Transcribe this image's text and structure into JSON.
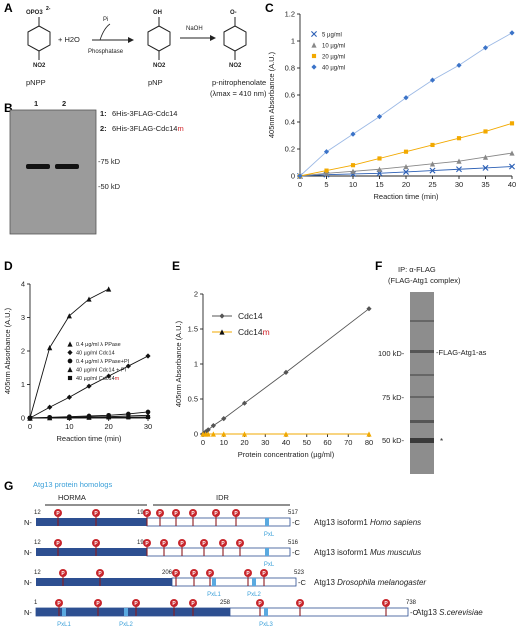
{
  "panels": {
    "A": "A",
    "B": "B",
    "C": "C",
    "D": "D",
    "E": "E",
    "F": "F",
    "G": "G"
  },
  "panel_a": {
    "pnpp_group": "OPO3",
    "pnpp_charge": "2-",
    "plus_water": "+ H2O",
    "pi_label": "Pi",
    "enzyme": "Phosphatase",
    "naoh": "NaOH",
    "oh": "OH",
    "ominus": "O-",
    "nitro": "NO2",
    "pnpp": "pNPP",
    "pnp": "pNP",
    "product": "p-nitrophenolate",
    "lambda": "(λmax = 410 nm)"
  },
  "panel_b": {
    "lane1": "1",
    "lane2": "2",
    "marker75": "-75 kD",
    "marker50": "-50 kD",
    "legend1_num": "1:",
    "legend1": "6His-3FLAG-Cdc14",
    "legend2_num": "2:",
    "legend2": "6His-3FLAG-Cdc14",
    "legend2_suffix": "m"
  },
  "panel_f": {
    "title1": "IP: α-FLAG",
    "title2": "(FLAG-Atg1 complex)",
    "m100": "100 kD-",
    "m75": "75 kD-",
    "m50": "50 kD-",
    "band": "-FLAG-Atg1-as",
    "star": "*"
  },
  "chart_data": [
    {
      "id": "C",
      "type": "line",
      "xlabel": "Reaction time (min)",
      "ylabel": "405nm Absorbance (A.U.)",
      "xlim": [
        0,
        40
      ],
      "ylim": [
        0,
        1.2
      ],
      "x_ticks": [
        "0",
        "5",
        "10",
        "15",
        "20",
        "25",
        "30",
        "35",
        "40"
      ],
      "y_ticks": [
        "0",
        "0.2",
        "0.4",
        "0.6",
        "0.8",
        "1",
        "1.2"
      ],
      "x": [
        0,
        5,
        10,
        15,
        20,
        25,
        30,
        35,
        40
      ],
      "series": [
        {
          "name": "5 µg/ml",
          "color": "#2b5fb5",
          "marker": "x",
          "values": [
            0,
            0.01,
            0.015,
            0.02,
            0.03,
            0.04,
            0.05,
            0.06,
            0.07
          ]
        },
        {
          "name": "10 µg/ml",
          "color": "#888888",
          "marker": "triangle",
          "values": [
            0,
            0.02,
            0.035,
            0.05,
            0.07,
            0.09,
            0.11,
            0.14,
            0.17
          ]
        },
        {
          "name": "20 µg/ml",
          "color": "#f2a900",
          "marker": "square",
          "values": [
            0,
            0.04,
            0.08,
            0.13,
            0.18,
            0.23,
            0.28,
            0.33,
            0.39
          ]
        },
        {
          "name": "40 µg/ml",
          "color": "#3b73c8",
          "marker": "diamond",
          "values": [
            0,
            0.18,
            0.31,
            0.44,
            0.58,
            0.71,
            0.82,
            0.95,
            1.06
          ]
        }
      ]
    },
    {
      "id": "D",
      "type": "line",
      "xlabel": "Reaction time (min)",
      "ylabel": "405nm Absorbance (A.U.)",
      "xlim": [
        0,
        30
      ],
      "ylim": [
        0,
        4
      ],
      "x_ticks": [
        "0",
        "10",
        "20",
        "30"
      ],
      "y_ticks": [
        "0",
        "1",
        "2",
        "3",
        "4"
      ],
      "x": [
        0,
        5,
        10,
        15,
        20,
        25,
        30
      ],
      "series": [
        {
          "name": "0.4 µg/ml λ PPase",
          "values": [
            0,
            2.1,
            3.05,
            3.55,
            3.85,
            null,
            null
          ]
        },
        {
          "name": "40 µg/ml Cdc14",
          "values": [
            0,
            0.32,
            0.62,
            0.95,
            1.25,
            1.55,
            1.85
          ]
        },
        {
          "name": "0.4 µg/ml λ PPase+PI",
          "values": [
            0,
            0.02,
            0.04,
            0.06,
            0.08,
            0.12,
            0.18
          ]
        },
        {
          "name": "40 µg/ml Cdc14 + PI",
          "values": [
            0,
            0.01,
            0.02,
            0.03,
            0.04,
            0.06,
            0.08
          ]
        },
        {
          "name": "40 µg/ml Cdc14",
          "name_suffix": "m",
          "values": [
            0,
            0.0,
            0.01,
            0.01,
            0.02,
            0.02,
            0.03
          ]
        }
      ]
    },
    {
      "id": "E",
      "type": "line",
      "xlabel": "Protein concentration (µg/ml)",
      "ylabel": "405nm Absorbance (A.U.)",
      "xlim": [
        0,
        80
      ],
      "ylim": [
        0,
        2
      ],
      "x_ticks": [
        "0",
        "10",
        "20",
        "30",
        "40",
        "50",
        "60",
        "70",
        "80"
      ],
      "y_ticks": [
        "0",
        "0.5",
        "1",
        "1.5",
        "2"
      ],
      "x": [
        0,
        1.25,
        2.5,
        5,
        10,
        20,
        40,
        80
      ],
      "series": [
        {
          "name": "Cdc14",
          "color": "#555555",
          "values": [
            0,
            0.03,
            0.06,
            0.12,
            0.22,
            0.44,
            0.88,
            1.79
          ]
        },
        {
          "name": "Cdc14",
          "name_suffix": "m",
          "color": "#f2a900",
          "values": [
            0,
            0,
            0,
            0,
            0,
            0,
            0,
            0
          ]
        }
      ]
    }
  ],
  "panel_g": {
    "title": "Atg13 protein homologs",
    "horma": "HORMA",
    "idr": "IDR",
    "rows": [
      {
        "start": "12",
        "mid": "190",
        "end": "517",
        "name": "Atg13 isoform1",
        "species": "Homo sapiens",
        "pxl": [
          "PxL"
        ]
      },
      {
        "start": "12",
        "mid": "190",
        "end": "516",
        "name": "Atg13 isoform1",
        "species": "Mus musculus",
        "pxl": [
          "PxL"
        ]
      },
      {
        "start": "12",
        "mid": "206",
        "end": "523",
        "name": "Atg13",
        "species": "Drosophila melanogaster",
        "pxl": [
          "PxL1",
          "PxL2"
        ]
      },
      {
        "start": "1",
        "mid": "258",
        "end": "738",
        "name": "Atg13",
        "species": "S.cerevisiae",
        "pxl": [
          "PxL1",
          "PxL2",
          "PxL3"
        ]
      }
    ],
    "n": "N-",
    "c": "-C",
    "p": "P"
  }
}
